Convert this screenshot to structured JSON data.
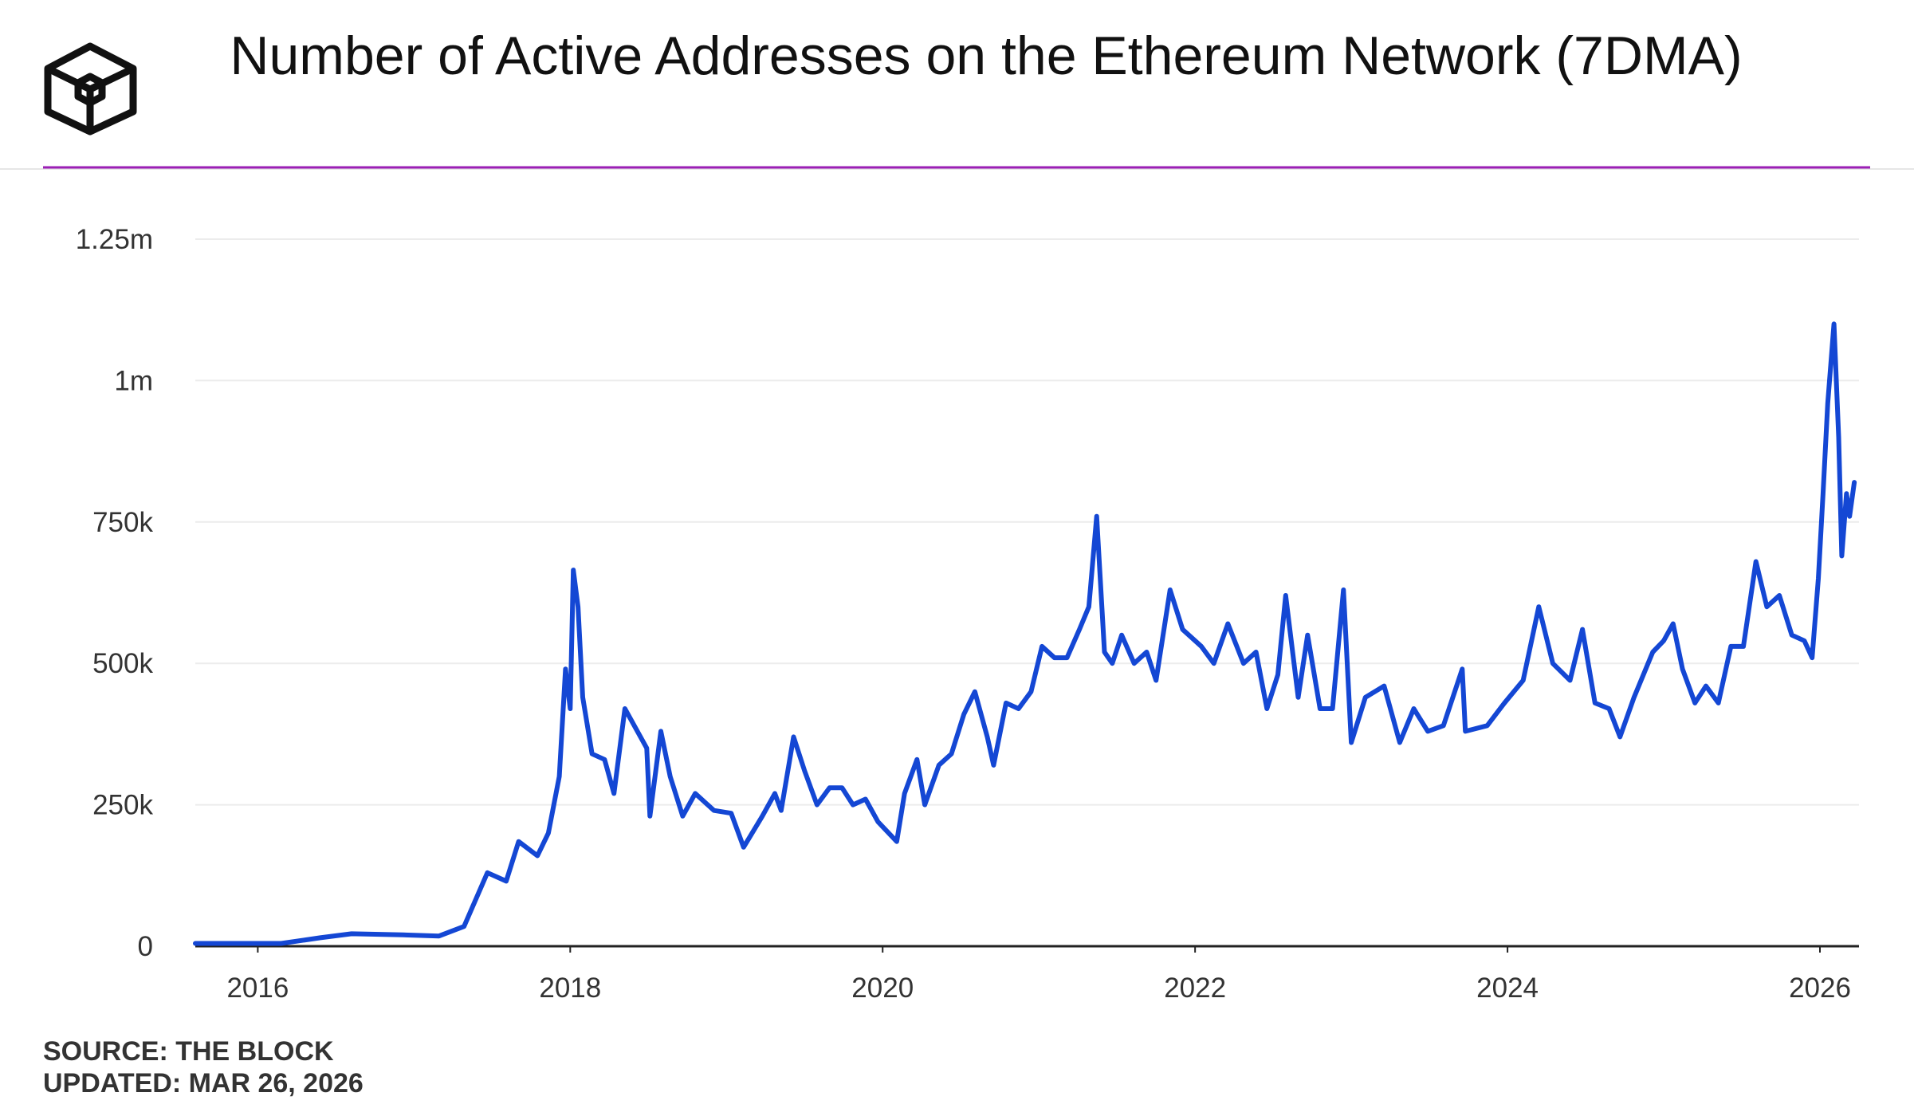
{
  "chart_data": {
    "type": "line",
    "title": "Number of Active Addresses on the Ethereum Network (7DMA)",
    "source": "SOURCE: THE BLOCK",
    "updated": "UPDATED: MAR 26, 2026",
    "color": "#1447d4",
    "xlim": [
      2015.6,
      2026.25
    ],
    "xticks": [
      2016,
      2018,
      2020,
      2022,
      2024,
      2026
    ],
    "ylim": [
      0,
      1250000
    ],
    "yticks": [
      0,
      {
        "value": 250000,
        "label": "250k"
      },
      {
        "value": 500000,
        "label": "500k"
      },
      {
        "value": 750000,
        "label": "750k"
      },
      {
        "value": 1000000,
        "label": "1m"
      },
      {
        "value": 1250000,
        "label": "1.25m"
      }
    ],
    "grid": true,
    "x": [
      2015.6,
      2016.15,
      2016.4,
      2016.6,
      2016.93,
      2017.16,
      2017.32,
      2017.47,
      2017.59,
      2017.67,
      2017.79,
      2017.86,
      2017.93,
      2017.97,
      2018.0,
      2018.02,
      2018.05,
      2018.08,
      2018.14,
      2018.22,
      2018.28,
      2018.35,
      2018.43,
      2018.49,
      2018.51,
      2018.58,
      2018.64,
      2018.72,
      2018.8,
      2018.92,
      2019.03,
      2019.11,
      2019.23,
      2019.31,
      2019.35,
      2019.43,
      2019.5,
      2019.58,
      2019.66,
      2019.74,
      2019.81,
      2019.89,
      2019.97,
      2020.09,
      2020.14,
      2020.22,
      2020.27,
      2020.36,
      2020.44,
      2020.52,
      2020.59,
      2020.67,
      2020.71,
      2020.79,
      2020.87,
      2020.95,
      2021.02,
      2021.1,
      2021.18,
      2021.26,
      2021.32,
      2021.37,
      2021.42,
      2021.47,
      2021.53,
      2021.61,
      2021.69,
      2021.75,
      2021.84,
      2021.92,
      2022.04,
      2022.12,
      2022.21,
      2022.31,
      2022.39,
      2022.46,
      2022.53,
      2022.58,
      2022.66,
      2022.72,
      2022.8,
      2022.88,
      2022.95,
      2023.0,
      2023.09,
      2023.21,
      2023.31,
      2023.4,
      2023.49,
      2023.59,
      2023.71,
      2023.73,
      2023.87,
      2023.98,
      2024.1,
      2024.2,
      2024.29,
      2024.4,
      2024.48,
      2024.56,
      2024.65,
      2024.72,
      2024.81,
      2024.93,
      2025.0,
      2025.06,
      2025.12,
      2025.2,
      2025.27,
      2025.35,
      2025.43,
      2025.51,
      2025.59,
      2025.66,
      2025.74,
      2025.82,
      2025.9,
      2025.95,
      2025.99,
      2026.02,
      2026.05,
      2026.09,
      2026.12,
      2026.14,
      2026.17,
      2026.19,
      2026.22
    ],
    "values": [
      5000,
      5000,
      15000,
      22000,
      20000,
      18000,
      35000,
      130000,
      115000,
      185000,
      160000,
      200000,
      300000,
      490000,
      420000,
      665000,
      600000,
      440000,
      340000,
      330000,
      270000,
      420000,
      380000,
      350000,
      230000,
      380000,
      300000,
      230000,
      270000,
      240000,
      235000,
      175000,
      230000,
      270000,
      240000,
      370000,
      310000,
      250000,
      280000,
      280000,
      250000,
      260000,
      220000,
      185000,
      270000,
      330000,
      250000,
      320000,
      340000,
      410000,
      450000,
      370000,
      320000,
      430000,
      420000,
      450000,
      530000,
      510000,
      510000,
      560000,
      600000,
      760000,
      520000,
      500000,
      550000,
      500000,
      520000,
      470000,
      630000,
      560000,
      530000,
      500000,
      570000,
      500000,
      520000,
      420000,
      480000,
      620000,
      440000,
      550000,
      420000,
      420000,
      630000,
      360000,
      440000,
      460000,
      360000,
      420000,
      380000,
      390000,
      490000,
      380000,
      390000,
      430000,
      470000,
      600000,
      500000,
      470000,
      560000,
      430000,
      420000,
      370000,
      440000,
      520000,
      540000,
      570000,
      490000,
      430000,
      460000,
      430000,
      530000,
      530000,
      680000,
      600000,
      620000,
      550000,
      540000,
      510000,
      650000,
      800000,
      960000,
      1100000,
      900000,
      690000,
      800000,
      760000,
      820000
    ]
  }
}
